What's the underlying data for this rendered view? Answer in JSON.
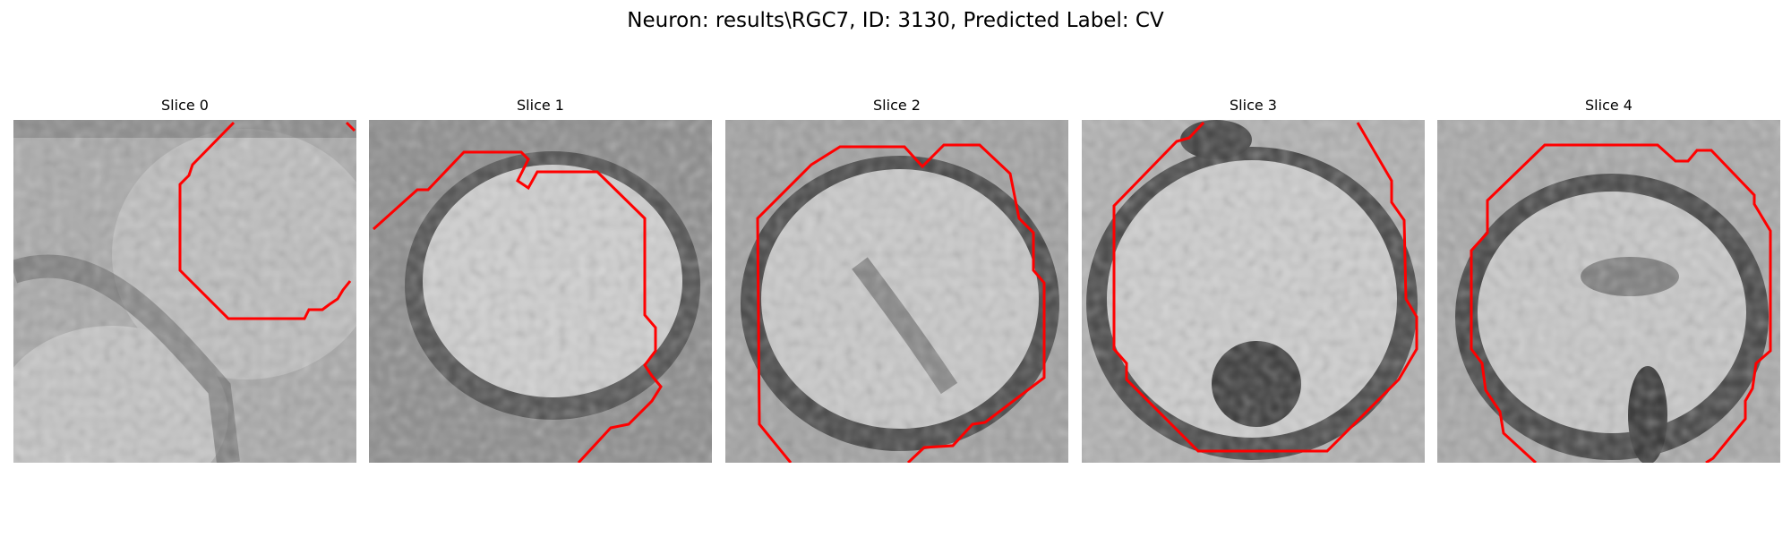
{
  "figure": {
    "title": "Neuron: results\\RGC7, ID: 3130, Predicted Label: CV"
  },
  "slices": [
    {
      "title": "Slice 0",
      "image_name": "em-slice-0-image",
      "contour_color": "#ff0000"
    },
    {
      "title": "Slice 1",
      "image_name": "em-slice-1-image",
      "contour_color": "#ff0000"
    },
    {
      "title": "Slice 2",
      "image_name": "em-slice-2-image",
      "contour_color": "#ff0000"
    },
    {
      "title": "Slice 3",
      "image_name": "em-slice-3-image",
      "contour_color": "#ff0000"
    },
    {
      "title": "Slice 4",
      "image_name": "em-slice-4-image",
      "contour_color": "#ff0000"
    }
  ]
}
